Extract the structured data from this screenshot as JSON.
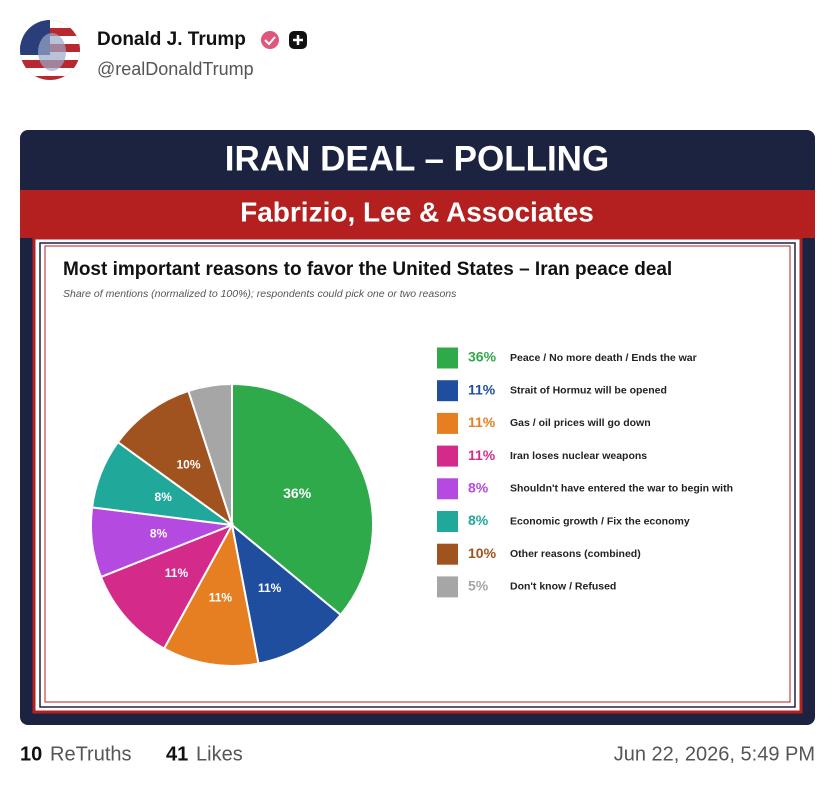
{
  "post": {
    "author": "Donald J. Trump",
    "handle": "@realDonaldTrump",
    "retruths": 10,
    "retruths_label": "ReTruths",
    "likes": 41,
    "likes_label": "Likes",
    "date": "Jun 22, 2026, 5:49 PM"
  },
  "image": {
    "banner_title": "IRAN DEAL – POLLING",
    "banner_subtitle": "Fabrizio, Lee & Associates"
  },
  "chart_data": {
    "type": "pie",
    "title": "Most important reasons to favor the United States – Iran peace deal",
    "subtitle": "Share of mentions (normalized to 100%); respondents could pick one or two reasons",
    "categories": [
      "Peace / No more death / Ends the war",
      "Strait of Hormuz will be opened",
      "Gas / oil prices will go down",
      "Iran loses nuclear weapons",
      "Shouldn't have entered the war to begin with",
      "Economic growth / Fix the economy",
      "Other reasons (combined)",
      "Don't know / Refused"
    ],
    "values": [
      36,
      11,
      11,
      11,
      8,
      8,
      10,
      5
    ],
    "value_labels": [
      "36%",
      "11%",
      "11%",
      "11%",
      "8%",
      "8%",
      "10%",
      "5%"
    ],
    "colors": [
      "#2eaa4a",
      "#1f4e9e",
      "#e67e22",
      "#d42a8a",
      "#b44ae0",
      "#20a89b",
      "#a0531e",
      "#a6a6a6"
    ]
  }
}
